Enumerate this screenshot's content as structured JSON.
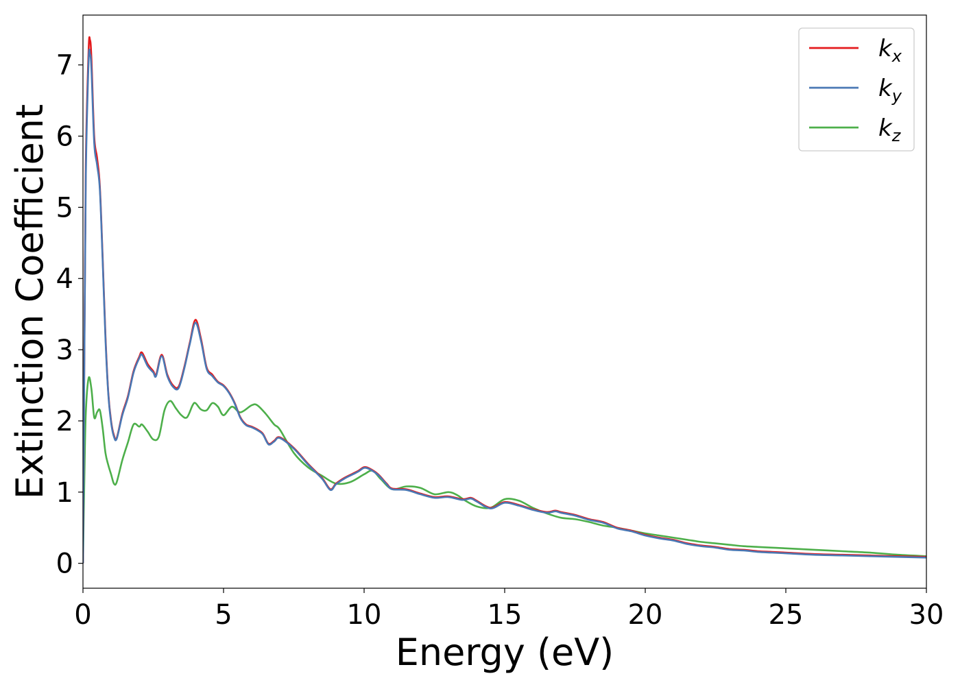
{
  "chart_data": {
    "type": "line",
    "title": "",
    "xlabel": "Energy (eV)",
    "ylabel": "Extinction Coefficient",
    "xlim": [
      0,
      30
    ],
    "ylim": [
      -0.35,
      7.7
    ],
    "xticks": [
      0,
      5,
      10,
      15,
      20,
      25,
      30
    ],
    "xtick_labels": [
      "0",
      "5",
      "10",
      "15",
      "20",
      "25",
      "30"
    ],
    "yticks": [
      0,
      1,
      2,
      3,
      4,
      5,
      6,
      7
    ],
    "ytick_labels": [
      "0",
      "1",
      "2",
      "3",
      "4",
      "5",
      "6",
      "7"
    ],
    "grid": false,
    "legend_position": "top-right",
    "series": [
      {
        "name": "k",
        "subscript": "x",
        "color": "#e41a1c",
        "x": [
          0,
          0.05,
          0.1,
          0.2,
          0.25,
          0.3,
          0.4,
          0.5,
          0.6,
          0.7,
          0.8,
          0.9,
          1.0,
          1.1,
          1.2,
          1.4,
          1.6,
          1.8,
          2.0,
          2.1,
          2.3,
          2.5,
          2.6,
          2.8,
          3.0,
          3.2,
          3.4,
          3.6,
          3.8,
          4.0,
          4.2,
          4.4,
          4.6,
          4.8,
          5.0,
          5.2,
          5.4,
          5.6,
          5.8,
          6.0,
          6.2,
          6.4,
          6.6,
          6.8,
          7.0,
          7.5,
          8.0,
          8.5,
          8.8,
          9.0,
          9.3,
          9.6,
          9.8,
          10.0,
          10.2,
          10.5,
          10.8,
          11.0,
          11.5,
          12.0,
          12.5,
          13.0,
          13.5,
          13.8,
          14.0,
          14.5,
          15.0,
          15.5,
          16.0,
          16.5,
          16.8,
          17.0,
          17.5,
          18.0,
          18.5,
          19.0,
          19.5,
          20.0,
          20.5,
          21.0,
          21.5,
          22.0,
          22.5,
          23.0,
          23.5,
          24.0,
          24.5,
          25.0,
          26.0,
          27.0,
          28.0,
          29.0,
          30.0
        ],
        "y": [
          0,
          3.0,
          5.6,
          7.2,
          7.35,
          7.1,
          6.0,
          5.7,
          5.3,
          4.3,
          3.2,
          2.4,
          2.0,
          1.8,
          1.76,
          2.1,
          2.35,
          2.7,
          2.9,
          2.96,
          2.8,
          2.7,
          2.65,
          2.93,
          2.65,
          2.5,
          2.48,
          2.75,
          3.1,
          3.42,
          3.15,
          2.75,
          2.65,
          2.55,
          2.5,
          2.4,
          2.25,
          2.05,
          1.95,
          1.92,
          1.88,
          1.82,
          1.68,
          1.72,
          1.77,
          1.62,
          1.4,
          1.2,
          1.04,
          1.12,
          1.2,
          1.26,
          1.3,
          1.35,
          1.33,
          1.25,
          1.12,
          1.05,
          1.04,
          0.98,
          0.93,
          0.94,
          0.9,
          0.92,
          0.88,
          0.78,
          0.86,
          0.82,
          0.76,
          0.72,
          0.74,
          0.72,
          0.68,
          0.62,
          0.58,
          0.5,
          0.46,
          0.4,
          0.36,
          0.33,
          0.28,
          0.25,
          0.23,
          0.2,
          0.19,
          0.17,
          0.16,
          0.15,
          0.13,
          0.12,
          0.11,
          0.1,
          0.09
        ]
      },
      {
        "name": "k",
        "subscript": "y",
        "color": "#4a78b4",
        "x": [
          0,
          0.05,
          0.1,
          0.2,
          0.25,
          0.3,
          0.4,
          0.5,
          0.6,
          0.7,
          0.8,
          0.9,
          1.0,
          1.1,
          1.2,
          1.4,
          1.6,
          1.8,
          2.0,
          2.1,
          2.3,
          2.5,
          2.6,
          2.8,
          3.0,
          3.2,
          3.4,
          3.6,
          3.8,
          4.0,
          4.2,
          4.4,
          4.6,
          4.8,
          5.0,
          5.2,
          5.4,
          5.6,
          5.8,
          6.0,
          6.2,
          6.4,
          6.6,
          6.8,
          7.0,
          7.5,
          8.0,
          8.5,
          8.8,
          9.0,
          9.3,
          9.6,
          9.8,
          10.0,
          10.2,
          10.5,
          10.8,
          11.0,
          11.5,
          12.0,
          12.5,
          13.0,
          13.5,
          13.8,
          14.0,
          14.5,
          15.0,
          15.5,
          16.0,
          16.5,
          16.8,
          17.0,
          17.5,
          18.0,
          18.5,
          19.0,
          19.5,
          20.0,
          20.5,
          21.0,
          21.5,
          22.0,
          22.5,
          23.0,
          23.5,
          24.0,
          24.5,
          25.0,
          26.0,
          27.0,
          28.0,
          29.0,
          30.0
        ],
        "y": [
          0,
          2.9,
          5.4,
          7.05,
          7.15,
          6.95,
          5.9,
          5.6,
          5.25,
          4.25,
          3.15,
          2.38,
          1.98,
          1.78,
          1.75,
          2.08,
          2.33,
          2.68,
          2.88,
          2.93,
          2.77,
          2.68,
          2.63,
          2.91,
          2.63,
          2.48,
          2.46,
          2.73,
          3.08,
          3.38,
          3.12,
          2.73,
          2.63,
          2.54,
          2.49,
          2.39,
          2.24,
          2.04,
          1.94,
          1.91,
          1.87,
          1.81,
          1.67,
          1.71,
          1.76,
          1.61,
          1.39,
          1.19,
          1.03,
          1.11,
          1.19,
          1.25,
          1.29,
          1.34,
          1.32,
          1.24,
          1.11,
          1.04,
          1.03,
          0.97,
          0.92,
          0.93,
          0.89,
          0.91,
          0.87,
          0.77,
          0.85,
          0.81,
          0.75,
          0.71,
          0.73,
          0.71,
          0.67,
          0.61,
          0.57,
          0.49,
          0.45,
          0.39,
          0.35,
          0.32,
          0.27,
          0.24,
          0.22,
          0.19,
          0.18,
          0.16,
          0.15,
          0.14,
          0.12,
          0.11,
          0.1,
          0.09,
          0.08
        ]
      },
      {
        "name": "k",
        "subscript": "z",
        "color": "#4daf4a",
        "x": [
          0,
          0.05,
          0.1,
          0.2,
          0.3,
          0.4,
          0.5,
          0.6,
          0.7,
          0.8,
          0.9,
          1.0,
          1.1,
          1.2,
          1.4,
          1.6,
          1.8,
          2.0,
          2.1,
          2.3,
          2.5,
          2.7,
          2.9,
          3.1,
          3.3,
          3.5,
          3.7,
          3.9,
          4.0,
          4.2,
          4.4,
          4.6,
          4.8,
          5.0,
          5.3,
          5.6,
          6.0,
          6.2,
          6.5,
          6.8,
          7.0,
          7.5,
          8.0,
          8.5,
          9.0,
          9.5,
          10.0,
          10.3,
          10.6,
          11.0,
          11.5,
          12.0,
          12.5,
          13.0,
          13.3,
          13.6,
          14.0,
          14.5,
          15.0,
          15.5,
          16.0,
          16.5,
          17.0,
          17.5,
          18.0,
          18.5,
          19.0,
          19.5,
          20.0,
          20.5,
          21.0,
          21.5,
          22.0,
          22.5,
          23.0,
          23.5,
          24.0,
          24.5,
          25.0,
          26.0,
          27.0,
          28.0,
          29.0,
          30.0
        ],
        "y": [
          0,
          1.2,
          2.1,
          2.6,
          2.45,
          2.05,
          2.12,
          2.15,
          1.9,
          1.55,
          1.38,
          1.25,
          1.12,
          1.14,
          1.45,
          1.7,
          1.95,
          1.92,
          1.95,
          1.85,
          1.74,
          1.78,
          2.15,
          2.28,
          2.18,
          2.08,
          2.05,
          2.22,
          2.25,
          2.16,
          2.15,
          2.25,
          2.2,
          2.08,
          2.2,
          2.12,
          2.22,
          2.22,
          2.1,
          1.95,
          1.88,
          1.55,
          1.35,
          1.23,
          1.12,
          1.14,
          1.25,
          1.3,
          1.18,
          1.04,
          1.08,
          1.06,
          0.97,
          1.0,
          0.96,
          0.88,
          0.8,
          0.78,
          0.9,
          0.88,
          0.78,
          0.7,
          0.64,
          0.62,
          0.58,
          0.53,
          0.5,
          0.46,
          0.42,
          0.39,
          0.36,
          0.33,
          0.3,
          0.28,
          0.26,
          0.24,
          0.23,
          0.22,
          0.21,
          0.19,
          0.17,
          0.15,
          0.12,
          0.1
        ]
      }
    ]
  }
}
